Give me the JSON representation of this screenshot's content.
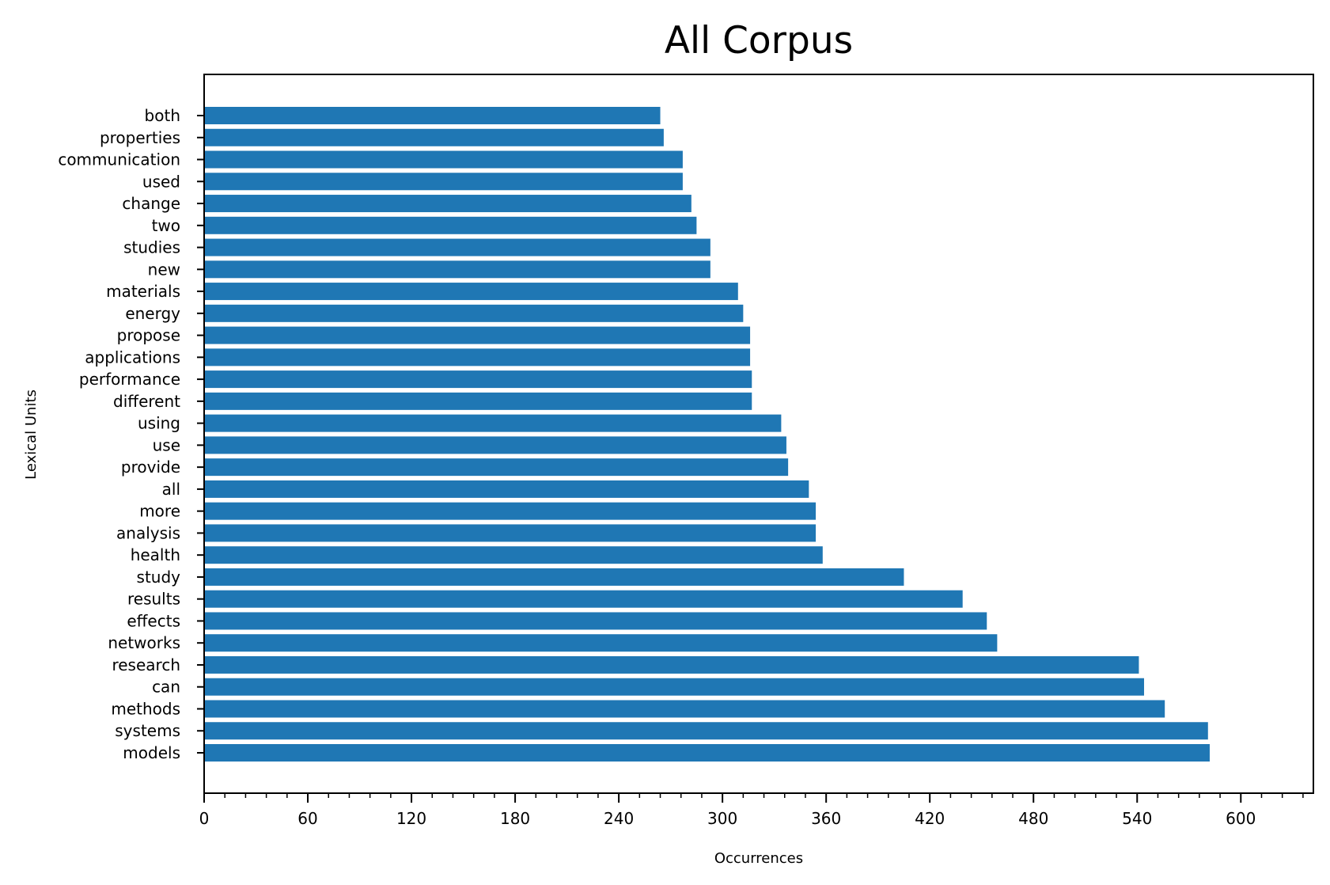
{
  "chart_data": {
    "type": "bar",
    "orientation": "horizontal",
    "title": "All Corpus",
    "xlabel": "Occurrences",
    "ylabel": "Lexical Units",
    "xlim": [
      0,
      642
    ],
    "xticks": [
      0,
      60,
      120,
      180,
      240,
      300,
      360,
      420,
      480,
      540,
      600
    ],
    "grid": false,
    "color": "#1f77b4",
    "categories": [
      "models",
      "systems",
      "methods",
      "can",
      "research",
      "networks",
      "effects",
      "results",
      "study",
      "health",
      "analysis",
      "more",
      "all",
      "provide",
      "use",
      "using",
      "different",
      "performance",
      "applications",
      "propose",
      "energy",
      "materials",
      "new",
      "studies",
      "two",
      "change",
      "used",
      "communication",
      "properties",
      "both"
    ],
    "values": [
      582,
      581,
      556,
      544,
      541,
      459,
      453,
      439,
      405,
      358,
      354,
      354,
      350,
      338,
      337,
      334,
      317,
      317,
      316,
      316,
      312,
      309,
      293,
      293,
      285,
      282,
      277,
      277,
      266,
      264
    ]
  }
}
